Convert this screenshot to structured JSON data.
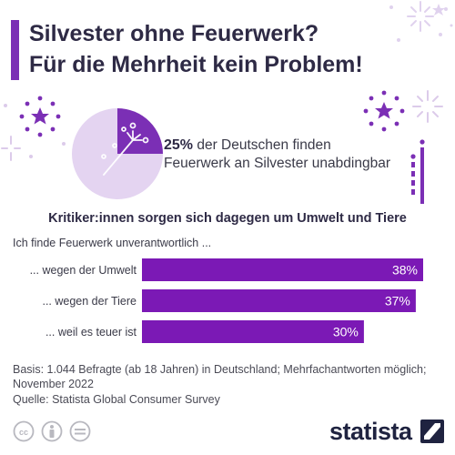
{
  "title": {
    "line1": "Silvester ohne Feuerwerk?",
    "line2": "Für die Mehrheit kein Problem!"
  },
  "highlight": {
    "value": "25%",
    "share": 0.25,
    "text_line1": " der Deutschen finden",
    "text_line2": "Feuerwerk an Silvester unabdingbar"
  },
  "subtitle": "Kritiker:innen sorgen sich dagegen um Umwelt und Tiere",
  "question": "Ich finde Feuerwerk unverantwortlich ...",
  "chart_data": {
    "type": "bar",
    "orientation": "horizontal",
    "categories": [
      "... wegen der Umwelt",
      "... wegen der Tiere",
      "... weil es teuer ist"
    ],
    "values": [
      38,
      37,
      30
    ],
    "value_labels": [
      "38%",
      "37%",
      "30%"
    ],
    "unit": "%",
    "xlim": [
      0,
      44
    ],
    "grid": false,
    "bar_color": "#7b19b5"
  },
  "footnote": "Basis: 1.044 Befragte (ab 18 Jahren) in Deutschland; Mehrfachantworten möglich; November 2022",
  "source": "Quelle: Statista Global Consumer Survey",
  "brand": "statista",
  "colors": {
    "accent": "#7b2fb5",
    "bar": "#7b19b5",
    "pie_main": "#7b2fb5",
    "pie_rest": "#e4d4f1",
    "deco_light": "#ddd0ea"
  },
  "icons": [
    "fireworks-icon",
    "cc-icon",
    "person-icon",
    "equals-icon",
    "statista-logo-icon"
  ]
}
